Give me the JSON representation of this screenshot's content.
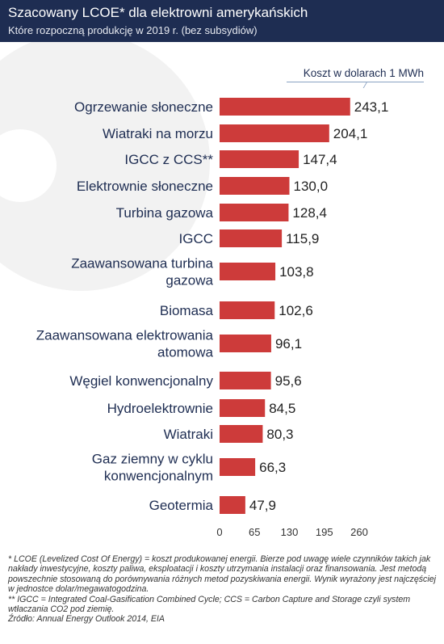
{
  "header": {
    "title": "Szacowany LCOE* dla elektrowni amerykańskich",
    "subtitle": "Które rozpoczną produkcję w 2019 r. (bez subsydiów)"
  },
  "colors": {
    "bar": "#cd3b3a",
    "header": "#1e2d52",
    "label": "#1e2d52",
    "value": "#222222"
  },
  "chart_data": {
    "type": "bar",
    "orientation": "horizontal",
    "title": "",
    "unit_label": "Koszt w dolarach 1 MWh",
    "categories": [
      [
        "Ogrzewanie słoneczne"
      ],
      [
        "Wiatraki  na morzu"
      ],
      [
        "IGCC z CCS**"
      ],
      [
        "Elektrownie słoneczne"
      ],
      [
        "Turbina gazowa"
      ],
      [
        "IGCC"
      ],
      [
        "Zaawansowana turbina",
        "gazowa"
      ],
      [
        "Biomasa"
      ],
      [
        "Zaawansowana elektrowania",
        "atomowa"
      ],
      [
        "Węgiel konwencjonalny"
      ],
      [
        "Hydroelektrownie"
      ],
      [
        "Wiatraki"
      ],
      [
        "Gaz ziemny w cyklu",
        "konwencjonalnym"
      ],
      [
        "Geotermia"
      ]
    ],
    "values": [
      243.1,
      204.1,
      147.4,
      130.0,
      128.4,
      115.9,
      103.8,
      102.6,
      96.1,
      95.6,
      84.5,
      80.3,
      66.3,
      47.9
    ],
    "value_labels": [
      "243,1",
      "204,1",
      "147,4",
      "130,0",
      "128,4",
      "115,9",
      "103,8",
      "102,6",
      "96,1",
      "95,6",
      "84,5",
      "80,3",
      "66,3",
      "47,9"
    ],
    "xticks": [
      0,
      65,
      130,
      195,
      260
    ],
    "xtick_labels": [
      "0",
      "65",
      "130",
      "195",
      "260"
    ],
    "xlim": [
      0,
      260
    ],
    "grid": false
  },
  "footnotes": [
    "*  LCOE (Levelized Cost Of Energy) = koszt produkowanej energii. Bierze pod uwagę wiele czynników takich jak nakłady inwestycyjne, koszty paliwa, eksploatacji i koszty utrzymania instalacji oraz finansowania. Jest metodą powszechnie stosowaną do porównywania różnych metod pozyskiwania energii. Wynik wyrażony jest najczęściej w jednostce dolar/megawatogodzina.",
    "** IGCC = Integrated Coal-Gasification Combined Cycle; CCS = Carbon Capture and Storage czyli system wtłaczania CO2 pod ziemię.",
    "Źródło: Annual Energy Outlook 2014, EIA"
  ]
}
